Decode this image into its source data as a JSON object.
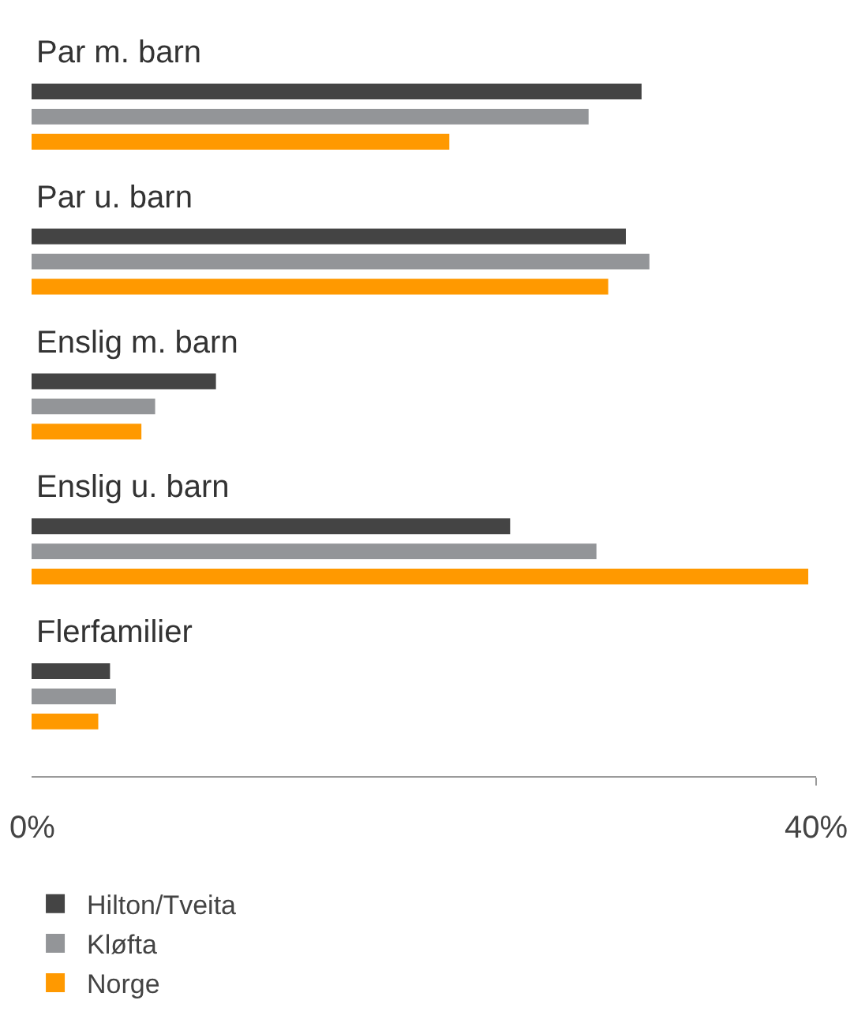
{
  "chart_data": {
    "type": "bar",
    "orientation": "horizontal",
    "categories": [
      "Par m. barn",
      "Par u. barn",
      "Enslig m. barn",
      "Enslig u. barn",
      "Flerfamilier"
    ],
    "series": [
      {
        "name": "Hilton/Tveita",
        "color": "#444444",
        "values": [
          31.1,
          30.3,
          9.4,
          24.4,
          4.0
        ]
      },
      {
        "name": "Kløfta",
        "color": "#939598",
        "values": [
          28.4,
          31.5,
          6.3,
          28.8,
          4.3
        ]
      },
      {
        "name": "Norge",
        "color": "#ff9900",
        "values": [
          21.3,
          29.4,
          5.6,
          39.6,
          3.4
        ]
      }
    ],
    "xlim": [
      0,
      40
    ],
    "xticks": [
      {
        "value": 0,
        "label": "0%"
      },
      {
        "value": 40,
        "label": "40%"
      }
    ],
    "legend": "bottom left"
  }
}
